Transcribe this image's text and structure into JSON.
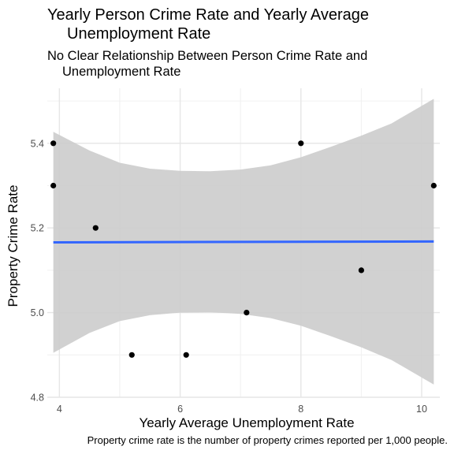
{
  "chart_data": {
    "type": "scatter",
    "title_line1": "Yearly Person Crime Rate and Yearly Average",
    "title_line2": "Unemployment Rate",
    "subtitle_line1": "No Clear Relationship Between Person Crime Rate and",
    "subtitle_line2": "Unemployment Rate",
    "caption": "Property crime rate is the number of property crimes reported per 1,000 people.",
    "xlabel": "Yearly Average Unemployment Rate",
    "ylabel": "Property Crime Rate",
    "xlim": [
      3.8,
      10.3
    ],
    "ylim": [
      4.8,
      5.53
    ],
    "x_ticks": [
      4,
      6,
      8,
      10
    ],
    "y_ticks": [
      4.8,
      5.0,
      5.2,
      5.4
    ],
    "x_tick_labels": [
      "4",
      "6",
      "8",
      "10"
    ],
    "y_tick_labels": [
      "4.8",
      "5.0",
      "5.2",
      "5.4"
    ],
    "grid": true,
    "points": [
      {
        "x": 3.9,
        "y": 5.4
      },
      {
        "x": 3.9,
        "y": 5.3
      },
      {
        "x": 4.6,
        "y": 5.2
      },
      {
        "x": 5.2,
        "y": 4.9
      },
      {
        "x": 6.1,
        "y": 4.9
      },
      {
        "x": 7.1,
        "y": 5.0
      },
      {
        "x": 8.0,
        "y": 5.4
      },
      {
        "x": 9.0,
        "y": 5.1
      },
      {
        "x": 10.2,
        "y": 5.3
      }
    ],
    "trend_line": {
      "x": [
        3.9,
        10.2
      ],
      "y": [
        5.166,
        5.168
      ],
      "color": "#3366ff"
    },
    "confidence_band": {
      "x": [
        3.9,
        4.5,
        5.0,
        5.5,
        6.0,
        6.5,
        7.0,
        7.5,
        8.0,
        8.5,
        9.0,
        9.5,
        10.2
      ],
      "upper": [
        5.427,
        5.383,
        5.354,
        5.34,
        5.335,
        5.334,
        5.338,
        5.348,
        5.367,
        5.392,
        5.418,
        5.447,
        5.505
      ],
      "lower": [
        4.905,
        4.952,
        4.98,
        4.994,
        5.0,
        5.001,
        4.997,
        4.987,
        4.969,
        4.944,
        4.918,
        4.888,
        4.83
      ],
      "color": "#cccccc"
    },
    "point_color": "#000000"
  }
}
